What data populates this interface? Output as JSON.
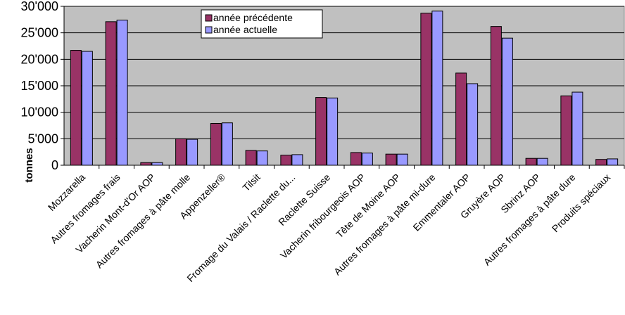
{
  "chart_data": {
    "type": "bar",
    "title": "",
    "xlabel": "",
    "ylabel": "tonnes",
    "ylim": [
      0,
      30000
    ],
    "yticks": [
      {
        "value": 0,
        "label": "0"
      },
      {
        "value": 5000,
        "label": "5'000"
      },
      {
        "value": 10000,
        "label": "10'000"
      },
      {
        "value": 15000,
        "label": "15'000"
      },
      {
        "value": 20000,
        "label": "20'000"
      },
      {
        "value": 25000,
        "label": "25'000"
      },
      {
        "value": 30000,
        "label": "30'000"
      }
    ],
    "grid": true,
    "legend_position": "top-center",
    "plot_background": "#c0c0c0",
    "categories": [
      "Mozzarella",
      "Autres fromages frais",
      "Vacherin Mont-d'Or AOP",
      "Autres fromages à pâte molle",
      "Appenzeller®",
      "Tilsit",
      "Fromage du Valais / Raclette du...",
      "Raclette Suisse",
      "Vacherin fribourgeois AOP",
      "Tête de Moine AOP",
      "Autres fromages à pâte mi-dure",
      "Emmentaler AOP",
      "Gruyère AOP",
      "Sbrinz AOP",
      "Autres fromages à pâte dure",
      "Produits spéciaux"
    ],
    "series": [
      {
        "name": "année précédente",
        "color": "#993366",
        "values": [
          21700,
          27100,
          500,
          5000,
          7900,
          2800,
          1900,
          12800,
          2400,
          2100,
          28700,
          17400,
          26200,
          1300,
          13100,
          1100
        ]
      },
      {
        "name": "année actuelle",
        "color": "#9999ff",
        "values": [
          21500,
          27400,
          500,
          4900,
          8000,
          2700,
          2000,
          12700,
          2300,
          2100,
          29100,
          15400,
          24000,
          1300,
          13800,
          1200
        ]
      }
    ]
  }
}
